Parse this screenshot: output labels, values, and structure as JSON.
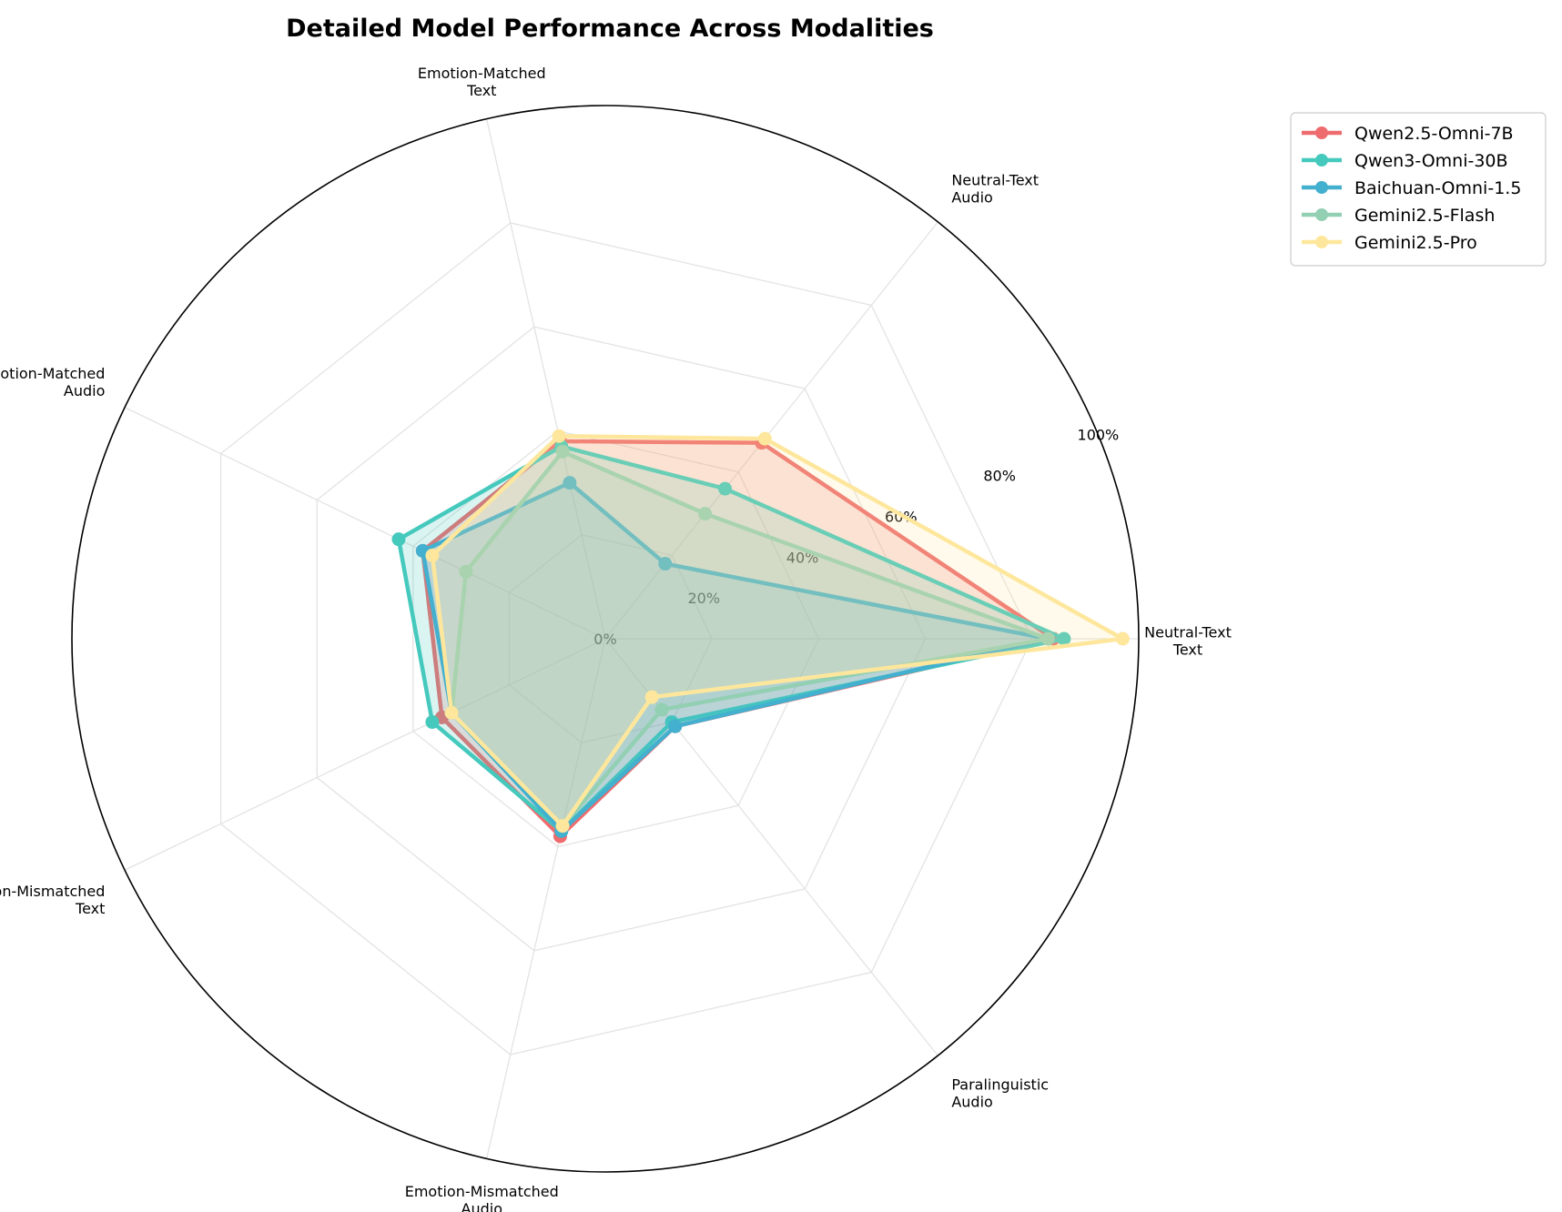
{
  "chart_data": {
    "type": "radar",
    "title": "Detailed Model Performance Across Modalities",
    "categories": [
      [
        "Neutral-Text",
        "Text"
      ],
      [
        "Neutral-Text",
        "Audio"
      ],
      [
        "Emotion-Matched",
        "Text"
      ],
      [
        "Emotion-Matched",
        "Audio"
      ],
      [
        "Emotion-Mismatched",
        "Text"
      ],
      [
        "Emotion-Mismatched",
        "Audio"
      ],
      [
        "Paralinguistic",
        "Audio"
      ]
    ],
    "rlim": [
      0,
      100
    ],
    "rticks": [
      0,
      20,
      40,
      60,
      80,
      100
    ],
    "rtick_labels": [
      "0%",
      "20%",
      "40%",
      "60%",
      "80%",
      "100%"
    ],
    "grid": true,
    "legend_position": "upper-right-outside",
    "series": [
      {
        "name": "Qwen2.5-Omni-7B",
        "color": "#ee6b6e",
        "values": [
          84,
          47,
          38,
          38,
          34,
          38,
          21
        ]
      },
      {
        "name": "Qwen3-Omni-30B",
        "color": "#45c9bd",
        "values": [
          86,
          36,
          37,
          43,
          36,
          37,
          20
        ]
      },
      {
        "name": "Baichuan-Omni-1.5",
        "color": "#42b0ce",
        "values": [
          83,
          18,
          30,
          38,
          32,
          37,
          21
        ]
      },
      {
        "name": "Gemini2.5-Flash",
        "color": "#93cfb3",
        "values": [
          83,
          30,
          36,
          29,
          32,
          36,
          17
        ]
      },
      {
        "name": "Gemini2.5-Pro",
        "color": "#fee79c",
        "values": [
          97,
          48,
          39,
          36,
          32,
          36,
          14
        ]
      }
    ]
  }
}
